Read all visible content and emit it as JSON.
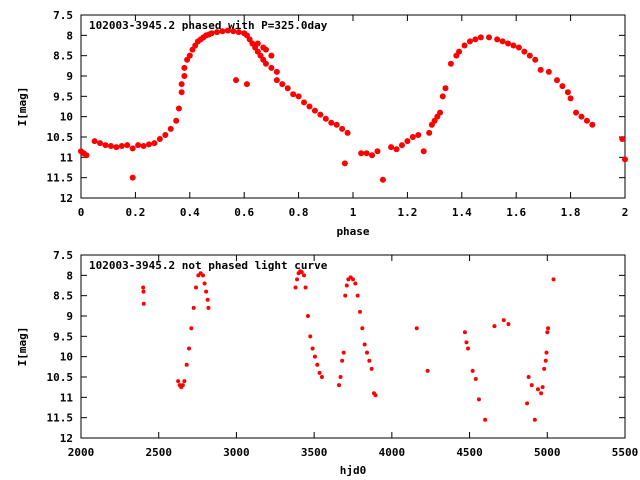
{
  "chart_data": [
    {
      "type": "scatter",
      "title": "102003-3945.2 phased with P=325.0day",
      "xlabel": "phase",
      "ylabel": "I[mag]",
      "xlim": [
        0,
        2
      ],
      "ylim": [
        12,
        7.5
      ],
      "y_inverted": true,
      "x_ticks": [
        0,
        0.2,
        0.4,
        0.6,
        0.8,
        1,
        1.2,
        1.4,
        1.6,
        1.8,
        2
      ],
      "x_tick_labels": [
        "0",
        "0.2",
        "0.4",
        "0.6",
        "0.8",
        "1",
        "1.2",
        "1.4",
        "1.6",
        "1.8",
        "2"
      ],
      "y_ticks": [
        7.5,
        8,
        8.5,
        9,
        9.5,
        10,
        10.5,
        11,
        11.5,
        12
      ],
      "y_tick_labels": [
        "7.5",
        "8",
        "8.5",
        "9",
        "9.5",
        "10",
        "10.5",
        "11",
        "11.5",
        "12"
      ],
      "grid": false,
      "marker_color": "#ff0000",
      "series": [
        {
          "points": [
            [
              0.0,
              10.85
            ],
            [
              0.01,
              10.9
            ],
            [
              0.02,
              10.95
            ],
            [
              0.05,
              10.6
            ],
            [
              0.07,
              10.65
            ],
            [
              0.09,
              10.7
            ],
            [
              0.11,
              10.72
            ],
            [
              0.13,
              10.75
            ],
            [
              0.15,
              10.72
            ],
            [
              0.17,
              10.7
            ],
            [
              0.19,
              10.78
            ],
            [
              0.19,
              11.5
            ],
            [
              0.21,
              10.7
            ],
            [
              0.23,
              10.72
            ],
            [
              0.25,
              10.68
            ],
            [
              0.27,
              10.65
            ],
            [
              0.29,
              10.55
            ],
            [
              0.31,
              10.45
            ],
            [
              0.33,
              10.3
            ],
            [
              0.35,
              10.1
            ],
            [
              0.36,
              9.8
            ],
            [
              0.37,
              9.4
            ],
            [
              0.37,
              9.2
            ],
            [
              0.38,
              9.0
            ],
            [
              0.38,
              8.8
            ],
            [
              0.39,
              8.6
            ],
            [
              0.4,
              8.5
            ],
            [
              0.41,
              8.35
            ],
            [
              0.42,
              8.25
            ],
            [
              0.43,
              8.15
            ],
            [
              0.44,
              8.1
            ],
            [
              0.45,
              8.05
            ],
            [
              0.46,
              8.0
            ],
            [
              0.47,
              7.98
            ],
            [
              0.48,
              7.95
            ],
            [
              0.5,
              7.92
            ],
            [
              0.52,
              7.9
            ],
            [
              0.54,
              7.88
            ],
            [
              0.56,
              7.9
            ],
            [
              0.58,
              7.92
            ],
            [
              0.6,
              7.95
            ],
            [
              0.61,
              8.0
            ],
            [
              0.62,
              8.1
            ],
            [
              0.63,
              8.2
            ],
            [
              0.64,
              8.3
            ],
            [
              0.65,
              8.4
            ],
            [
              0.66,
              8.5
            ],
            [
              0.67,
              8.6
            ],
            [
              0.68,
              8.7
            ],
            [
              0.7,
              8.8
            ],
            [
              0.72,
              8.9
            ],
            [
              0.57,
              9.1
            ],
            [
              0.61,
              9.2
            ],
            [
              0.65,
              8.2
            ],
            [
              0.67,
              8.3
            ],
            [
              0.68,
              8.35
            ],
            [
              0.7,
              8.5
            ],
            [
              0.72,
              9.1
            ],
            [
              0.74,
              9.2
            ],
            [
              0.76,
              9.3
            ],
            [
              0.78,
              9.45
            ],
            [
              0.8,
              9.5
            ],
            [
              0.82,
              9.65
            ],
            [
              0.84,
              9.75
            ],
            [
              0.86,
              9.85
            ],
            [
              0.88,
              9.95
            ],
            [
              0.9,
              10.05
            ],
            [
              0.92,
              10.15
            ],
            [
              0.94,
              10.2
            ],
            [
              0.96,
              10.3
            ],
            [
              0.98,
              10.4
            ],
            [
              0.97,
              11.15
            ],
            [
              1.03,
              10.9
            ],
            [
              1.05,
              10.9
            ],
            [
              1.07,
              10.95
            ],
            [
              1.09,
              10.85
            ],
            [
              1.11,
              11.55
            ],
            [
              1.14,
              10.75
            ],
            [
              1.16,
              10.8
            ],
            [
              1.18,
              10.7
            ],
            [
              1.2,
              10.6
            ],
            [
              1.22,
              10.5
            ],
            [
              1.24,
              10.45
            ],
            [
              1.26,
              10.85
            ],
            [
              1.28,
              10.4
            ],
            [
              1.29,
              10.2
            ],
            [
              1.3,
              10.1
            ],
            [
              1.31,
              10.0
            ],
            [
              1.32,
              9.9
            ],
            [
              1.33,
              9.5
            ],
            [
              1.34,
              9.3
            ],
            [
              1.36,
              8.7
            ],
            [
              1.38,
              8.5
            ],
            [
              1.39,
              8.4
            ],
            [
              1.41,
              8.25
            ],
            [
              1.43,
              8.15
            ],
            [
              1.45,
              8.1
            ],
            [
              1.47,
              8.05
            ],
            [
              1.5,
              8.05
            ],
            [
              1.53,
              8.1
            ],
            [
              1.55,
              8.15
            ],
            [
              1.57,
              8.2
            ],
            [
              1.59,
              8.25
            ],
            [
              1.61,
              8.3
            ],
            [
              1.63,
              8.4
            ],
            [
              1.65,
              8.5
            ],
            [
              1.67,
              8.6
            ],
            [
              1.69,
              8.85
            ],
            [
              1.72,
              8.9
            ],
            [
              1.75,
              9.1
            ],
            [
              1.77,
              9.25
            ],
            [
              1.79,
              9.4
            ],
            [
              1.8,
              9.55
            ],
            [
              1.82,
              9.9
            ],
            [
              1.84,
              10.0
            ],
            [
              1.86,
              10.1
            ],
            [
              1.88,
              10.2
            ],
            [
              1.99,
              10.55
            ],
            [
              2.0,
              11.05
            ]
          ]
        }
      ]
    },
    {
      "type": "scatter",
      "title": "102003-3945.2 not phased light curve",
      "xlabel": "hjd0",
      "ylabel": "I[mag]",
      "xlim": [
        2000,
        5500
      ],
      "ylim": [
        12,
        7.5
      ],
      "y_inverted": true,
      "x_ticks": [
        2000,
        2500,
        3000,
        3500,
        4000,
        4500,
        5000,
        5500
      ],
      "x_tick_labels": [
        "2000",
        "2500",
        "3000",
        "3500",
        "4000",
        "4500",
        "5000",
        "5500"
      ],
      "y_ticks": [
        7.5,
        8,
        8.5,
        9,
        9.5,
        10,
        10.5,
        11,
        11.5,
        12
      ],
      "y_tick_labels": [
        "7.5",
        "8",
        "8.5",
        "9",
        "9.5",
        "10",
        "10.5",
        "11",
        "11.5",
        "12"
      ],
      "grid": false,
      "marker_color": "#ff0000",
      "series": [
        {
          "points": [
            [
              2400,
              8.3
            ],
            [
              2402,
              8.4
            ],
            [
              2404,
              8.7
            ],
            [
              2625,
              10.6
            ],
            [
              2635,
              10.7
            ],
            [
              2645,
              10.75
            ],
            [
              2655,
              10.7
            ],
            [
              2665,
              10.6
            ],
            [
              2680,
              10.2
            ],
            [
              2695,
              9.8
            ],
            [
              2710,
              9.3
            ],
            [
              2725,
              8.8
            ],
            [
              2740,
              8.3
            ],
            [
              2755,
              8.0
            ],
            [
              2770,
              7.95
            ],
            [
              2785,
              8.0
            ],
            [
              2795,
              8.2
            ],
            [
              2805,
              8.4
            ],
            [
              2815,
              8.6
            ],
            [
              2820,
              8.8
            ],
            [
              3380,
              8.3
            ],
            [
              3390,
              8.1
            ],
            [
              3400,
              7.95
            ],
            [
              3410,
              7.9
            ],
            [
              3420,
              7.92
            ],
            [
              3435,
              8.0
            ],
            [
              3445,
              8.3
            ],
            [
              3460,
              9.0
            ],
            [
              3475,
              9.5
            ],
            [
              3490,
              9.8
            ],
            [
              3505,
              10.0
            ],
            [
              3520,
              10.2
            ],
            [
              3535,
              10.4
            ],
            [
              3550,
              10.5
            ],
            [
              3660,
              10.7
            ],
            [
              3670,
              10.5
            ],
            [
              3680,
              10.1
            ],
            [
              3690,
              9.9
            ],
            [
              3700,
              8.5
            ],
            [
              3710,
              8.25
            ],
            [
              3720,
              8.1
            ],
            [
              3735,
              8.05
            ],
            [
              3750,
              8.1
            ],
            [
              3765,
              8.2
            ],
            [
              3780,
              8.5
            ],
            [
              3795,
              8.9
            ],
            [
              3810,
              9.3
            ],
            [
              3825,
              9.7
            ],
            [
              3840,
              9.9
            ],
            [
              3855,
              10.1
            ],
            [
              3870,
              10.3
            ],
            [
              3885,
              10.9
            ],
            [
              3895,
              10.95
            ],
            [
              4160,
              9.3
            ],
            [
              4230,
              10.35
            ],
            [
              4470,
              9.4
            ],
            [
              4480,
              9.65
            ],
            [
              4490,
              9.8
            ],
            [
              4520,
              10.35
            ],
            [
              4540,
              10.55
            ],
            [
              4560,
              11.05
            ],
            [
              4600,
              11.55
            ],
            [
              4660,
              9.25
            ],
            [
              4720,
              9.1
            ],
            [
              4750,
              9.2
            ],
            [
              4870,
              11.15
            ],
            [
              4880,
              10.5
            ],
            [
              4900,
              10.7
            ],
            [
              4920,
              11.55
            ],
            [
              4940,
              10.8
            ],
            [
              4960,
              10.9
            ],
            [
              4970,
              10.75
            ],
            [
              4980,
              10.3
            ],
            [
              4990,
              10.1
            ],
            [
              4995,
              9.9
            ],
            [
              5000,
              9.4
            ],
            [
              5005,
              9.3
            ],
            [
              5040,
              8.1
            ]
          ]
        }
      ]
    }
  ]
}
